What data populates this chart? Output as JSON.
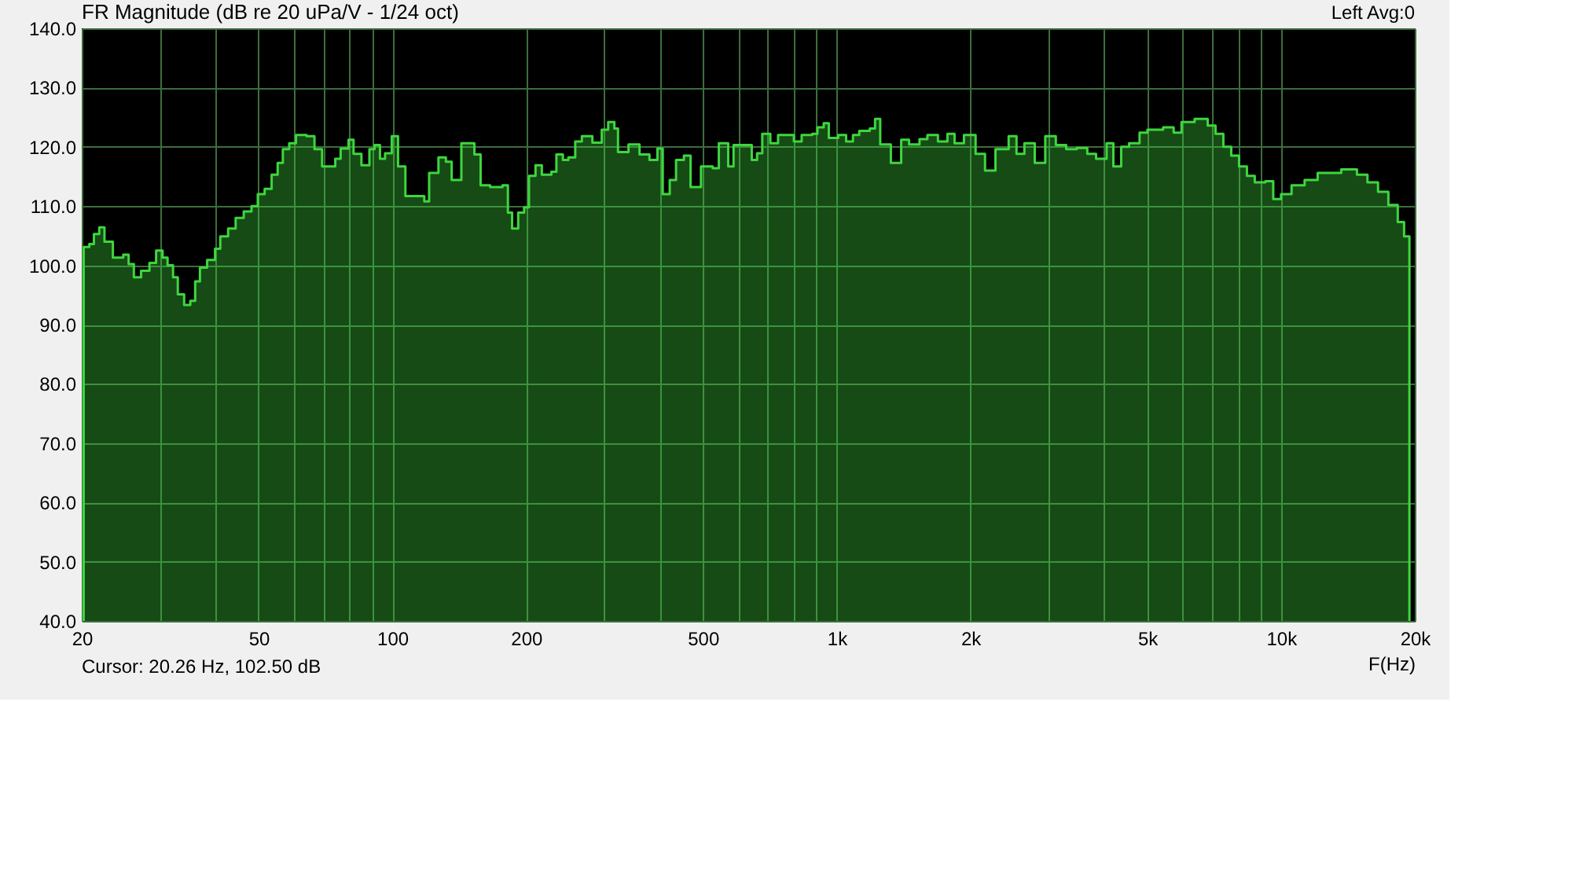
{
  "chart_data": {
    "type": "area",
    "title": "FR Magnitude (dB re 20 uPa/V - 1/24 oct)",
    "xlabel": "F(Hz)",
    "annotations": [
      "Left  Avg:0",
      "Cursor: 20.26 Hz, 102.50 dB"
    ],
    "log": "x",
    "grid": true,
    "color": "#3ed63e",
    "xlim": [
      20,
      20000
    ],
    "xticks": [
      20,
      {
        "value": 30,
        "label": null
      },
      {
        "value": 40,
        "label": null
      },
      50,
      {
        "value": 60,
        "label": null
      },
      {
        "value": 70,
        "label": null
      },
      {
        "value": 80,
        "label": null
      },
      {
        "value": 90,
        "label": null
      },
      100,
      200,
      {
        "value": 300,
        "label": null
      },
      {
        "value": 400,
        "label": null
      },
      500,
      {
        "value": 600,
        "label": null
      },
      {
        "value": 700,
        "label": null
      },
      {
        "value": 800,
        "label": null
      },
      {
        "value": 900,
        "label": null
      },
      {
        "value": 1000,
        "label": "1k"
      },
      {
        "value": 2000,
        "label": "2k"
      },
      {
        "value": 3000,
        "label": null
      },
      {
        "value": 4000,
        "label": null
      },
      {
        "value": 5000,
        "label": "5k"
      },
      {
        "value": 6000,
        "label": null
      },
      {
        "value": 7000,
        "label": null
      },
      {
        "value": 8000,
        "label": null
      },
      {
        "value": 9000,
        "label": null
      },
      {
        "value": 10000,
        "label": "10k"
      },
      {
        "value": 20000,
        "label": "20k"
      }
    ],
    "ylim": [
      40,
      140
    ],
    "yticks": [
      {
        "value": 40,
        "label": "40.0"
      },
      {
        "value": 50,
        "label": "50.0"
      },
      {
        "value": 60,
        "label": "60.0"
      },
      {
        "value": 70,
        "label": "70.0"
      },
      {
        "value": 80,
        "label": "80.0"
      },
      {
        "value": 90,
        "label": "90.0"
      },
      {
        "value": 100,
        "label": "100.0"
      },
      {
        "value": 110,
        "label": "110.0"
      },
      {
        "value": 120,
        "label": "120.0"
      },
      {
        "value": 130,
        "label": "130.0"
      },
      {
        "value": 140,
        "label": "140.0"
      }
    ],
    "x": [
      20.2,
      20.8,
      21.3,
      21.9,
      22.5,
      23.5,
      24.8,
      25.5,
      26.2,
      27.2,
      28.4,
      29.4,
      30.4,
      31.2,
      32.1,
      32.9,
      34.0,
      35.1,
      36.0,
      36.9,
      38.3,
      39.9,
      41.0,
      42.7,
      44.4,
      46.3,
      48.2,
      49.8,
      51.6,
      53.5,
      55.2,
      56.7,
      58.6,
      60.7,
      64.1,
      66.8,
      69.5,
      72.4,
      74.4,
      76.5,
      79.7,
      81.8,
      85.2,
      88.8,
      91.2,
      93.8,
      96.3,
      99.7,
      103,
      107,
      118,
      121,
      127,
      132,
      136,
      143,
      147,
      153,
      158,
      166,
      177,
      182,
      186,
      192,
      198,
      203,
      210,
      217,
      228,
      234,
      242,
      249,
      258,
      267,
      282,
      296,
      306,
      316,
      322,
      340,
      360,
      379,
      395,
      406,
      421,
      435,
      453,
      469,
      495,
      526,
      543,
      570,
      586,
      627,
      644,
      662,
      680,
      709,
      738,
      768,
      801,
      834,
      881,
      905,
      935,
      960,
      1008,
      1050,
      1088,
      1124,
      1187,
      1220,
      1253,
      1324,
      1397,
      1455,
      1536,
      1600,
      1690,
      1775,
      1842,
      1934,
      2054,
      2157,
      2277,
      2438,
      2539,
      2645,
      2791,
      2947,
      3113,
      3285,
      3469,
      3664,
      3835,
      4050,
      4194,
      4368,
      4550,
      4804,
      5004,
      5428,
      5733,
      5971,
      6390,
      6838,
      7122,
      7416,
      7725,
      8045,
      8380,
      8728,
      9219,
      9604,
      10000,
      10560,
      11300,
      12090,
      13660,
      14820,
      15650,
      16530,
      17440,
      18310,
      18920,
      19450
    ],
    "values": [
      103.1,
      103.6,
      105.3,
      106.4,
      104,
      101.3,
      101.8,
      100.2,
      98,
      99.1,
      100.4,
      102.5,
      101.3,
      100,
      98,
      95.1,
      93.3,
      94,
      97.3,
      99.6,
      100.9,
      102.8,
      104.9,
      106.2,
      108,
      109.1,
      110,
      112,
      112.9,
      115.3,
      117.3,
      119.6,
      120.6,
      122,
      121.8,
      119.6,
      116.7,
      116.7,
      118,
      119.7,
      121.2,
      118.8,
      116.9,
      119.6,
      120.3,
      118,
      118.9,
      121.8,
      116.7,
      111.7,
      110.8,
      115.6,
      118.2,
      117.5,
      114.4,
      120.6,
      120.6,
      118.7,
      113.5,
      113.2,
      113.5,
      108.9,
      106.2,
      108.9,
      109.8,
      115.1,
      116.9,
      115.3,
      115.8,
      118.7,
      117.8,
      118.2,
      120.9,
      121.8,
      120.7,
      122.9,
      124.2,
      123.1,
      119.1,
      120.4,
      118.7,
      117.8,
      119.7,
      112,
      114.4,
      117.8,
      118.5,
      113.2,
      116.7,
      116.4,
      120.6,
      116.7,
      120.3,
      120.3,
      117.8,
      118.9,
      122.2,
      120.6,
      122,
      122,
      120.9,
      122,
      122.2,
      123.3,
      124,
      121.5,
      122,
      120.9,
      122,
      122.7,
      123.1,
      124.7,
      120.4,
      117.3,
      121.2,
      120.4,
      121.3,
      122,
      120.9,
      122.2,
      120.6,
      122,
      118.8,
      116,
      119.6,
      121.8,
      118.8,
      120.6,
      117.3,
      121.8,
      120.3,
      119.6,
      119.8,
      118.8,
      118,
      120.6,
      116.7,
      120,
      120.6,
      122.4,
      122.9,
      123.3,
      122.4,
      124.2,
      124.7,
      123.6,
      122.2,
      120,
      118.5,
      116.7,
      115.1,
      114,
      114.2,
      111.2,
      112,
      113.5,
      114.4,
      115.6,
      116.2,
      115.3,
      114,
      112.4,
      110.2,
      107.3,
      104.9,
      103.1
    ]
  }
}
